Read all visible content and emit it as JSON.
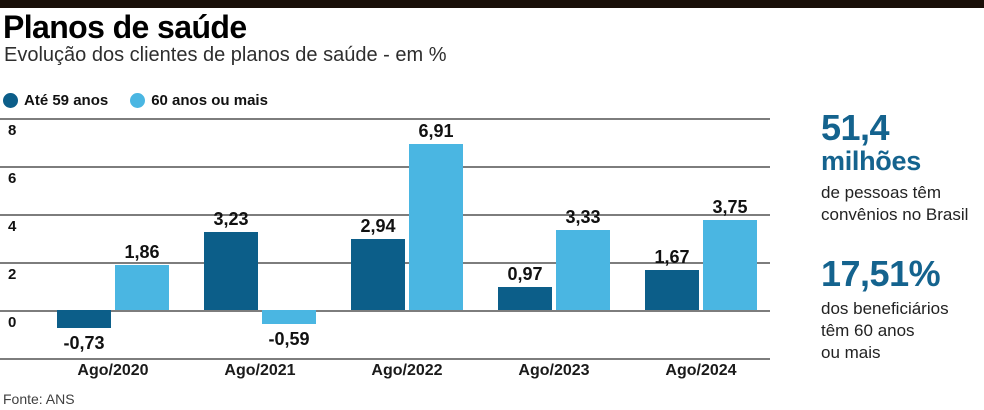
{
  "title": "Planos de saúde",
  "subtitle": "Evolução dos clientes de planos de saúde - em %",
  "source": "Fonte: ANS",
  "colors": {
    "accent_bar": "#190f08",
    "series_dark": "#0c5e89",
    "series_light": "#4ab6e2",
    "gridline": "#7d7d7d",
    "stat_number": "#14638e"
  },
  "chart_data": {
    "type": "bar",
    "categories": [
      "Ago/2020",
      "Ago/2021",
      "Ago/2022",
      "Ago/2023",
      "Ago/2024"
    ],
    "series": [
      {
        "name": "Até 59 anos",
        "color": "#0c5e89",
        "values": [
          -0.73,
          3.23,
          2.94,
          0.97,
          1.67
        ],
        "labels": [
          "-0,73",
          "3,23",
          "2,94",
          "0,97",
          "1,67"
        ]
      },
      {
        "name": "60 anos ou mais",
        "color": "#4ab6e2",
        "values": [
          1.86,
          -0.59,
          6.91,
          3.33,
          3.75
        ],
        "labels": [
          "1,86",
          "-0,59",
          "6,91",
          "3,33",
          "3,75"
        ]
      }
    ],
    "ylabel": "",
    "xlabel": "",
    "ylim": [
      -1.2,
      8
    ],
    "yticks": [
      8,
      6,
      4,
      2,
      0
    ],
    "grid": true,
    "legend_position": "top-left"
  },
  "stats": [
    {
      "value": "51,4",
      "unit": "milhões",
      "description": "de pessoas têm\nconvênios no Brasil"
    },
    {
      "value": "17,51%",
      "unit": "",
      "description": "dos beneficiários\ntêm 60 anos\nou mais"
    }
  ]
}
